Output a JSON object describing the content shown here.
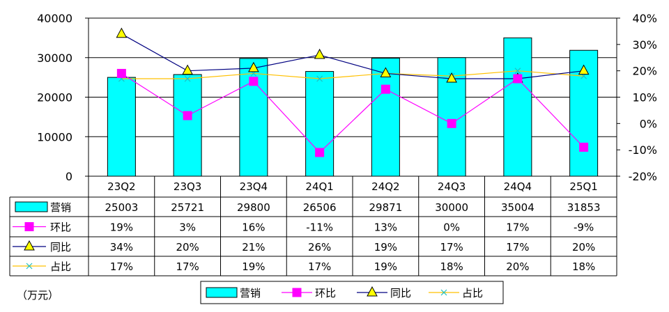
{
  "chart_data": {
    "type": "bar",
    "categories": [
      "23Q2",
      "23Q3",
      "23Q4",
      "24Q1",
      "24Q2",
      "24Q3",
      "24Q4",
      "25Q1"
    ],
    "unit_label": "（万元）",
    "y_left": {
      "lim": [
        0,
        40000
      ],
      "ticks": [
        "0",
        "10000",
        "20000",
        "30000",
        "40000"
      ]
    },
    "y_right": {
      "lim": [
        -20,
        40
      ],
      "ticks": [
        "-20%",
        "-10%",
        "0%",
        "10%",
        "20%",
        "30%",
        "40%"
      ]
    },
    "grid": true,
    "legend_position": "bottom",
    "series": [
      {
        "name": "营销",
        "kind": "bar",
        "axis": "left",
        "color": "#00ffff",
        "values": [
          25003,
          25721,
          29800,
          26506,
          29871,
          30000,
          35004,
          31853
        ],
        "labels": [
          "25003",
          "25721",
          "29800",
          "26506",
          "29871",
          "30000",
          "35004",
          "31853"
        ]
      },
      {
        "name": "环比",
        "kind": "line",
        "axis": "right",
        "color": "#ff00ff",
        "marker": "square",
        "values": [
          19,
          3,
          16,
          -11,
          13,
          0,
          17,
          -9
        ],
        "labels": [
          "19%",
          "3%",
          "16%",
          "-11%",
          "13%",
          "0%",
          "17%",
          "-9%"
        ]
      },
      {
        "name": "同比",
        "kind": "line",
        "axis": "right",
        "color": "#000080",
        "marker": "triangle",
        "values": [
          34,
          20,
          21,
          26,
          19,
          17,
          17,
          20
        ],
        "labels": [
          "34%",
          "20%",
          "21%",
          "26%",
          "19%",
          "17%",
          "17%",
          "20%"
        ]
      },
      {
        "name": "占比",
        "kind": "line",
        "axis": "right",
        "color": "#ffc000",
        "marker": "x",
        "values": [
          17,
          17,
          19,
          17,
          19,
          18,
          20,
          18
        ],
        "labels": [
          "17%",
          "17%",
          "19%",
          "17%",
          "19%",
          "18%",
          "20%",
          "18%"
        ]
      }
    ]
  }
}
